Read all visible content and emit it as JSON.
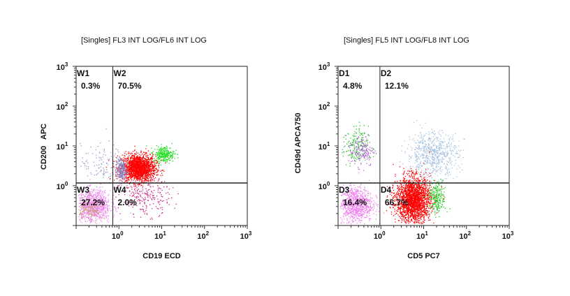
{
  "chart_data": [
    {
      "type": "scatter",
      "title": "[Singles] FL3 INT LOG/FL6 INT LOG",
      "xlabel": "CD19 ECD",
      "ylabel": "CD200   APC",
      "xscale": "log",
      "yscale": "log",
      "xlim": [
        0.1,
        1000
      ],
      "ylim": [
        0.1,
        1000
      ],
      "x_ticks": [
        {
          "base": "10",
          "exp": "0"
        },
        {
          "base": "10",
          "exp": "1"
        },
        {
          "base": "10",
          "exp": "2"
        },
        {
          "base": "10",
          "exp": "3"
        }
      ],
      "y_ticks": [
        {
          "base": "10",
          "exp": "0"
        },
        {
          "base": "10",
          "exp": "1"
        },
        {
          "base": "10",
          "exp": "2"
        },
        {
          "base": "10",
          "exp": "3"
        }
      ],
      "gate": {
        "x": 0.72,
        "y": 1.17
      },
      "quadrants": [
        {
          "name": "W1",
          "percent": "0.3%",
          "pos": "top-left"
        },
        {
          "name": "W2",
          "percent": "70.5%",
          "pos": "top-right"
        },
        {
          "name": "W3",
          "percent": "27.2%",
          "pos": "bottom-left"
        },
        {
          "name": "W4",
          "percent": "2.0%",
          "pos": "bottom-right"
        }
      ],
      "populations": [
        {
          "color": "#ff0000",
          "center": [
            2.8,
            2.8
          ],
          "count": 1800
        },
        {
          "color": "#22dd22",
          "center": [
            11,
            6.3
          ],
          "count": 260
        },
        {
          "color": "#8888c4",
          "center": [
            1.1,
            2.5
          ],
          "count": 220
        },
        {
          "color": "#9a98c8",
          "center": [
            0.4,
            3.5
          ],
          "count": 120
        },
        {
          "color": "#ee88ee",
          "center": [
            0.25,
            0.32
          ],
          "count": 900
        },
        {
          "color": "#c8a060",
          "center": [
            0.2,
            0.25
          ],
          "count": 120
        },
        {
          "color": "#cc2288",
          "center": [
            4,
            0.5
          ],
          "count": 220
        }
      ]
    },
    {
      "type": "scatter",
      "title": "[Singles] FL5 INT LOG/FL8 INT LOG",
      "xlabel": "CD5 PC7",
      "ylabel": "CD49d APCA750",
      "xscale": "log",
      "yscale": "log",
      "xlim": [
        0.1,
        1000
      ],
      "ylim": [
        0.1,
        1000
      ],
      "x_ticks": [
        {
          "base": "10",
          "exp": "0"
        },
        {
          "base": "10",
          "exp": "1"
        },
        {
          "base": "10",
          "exp": "2"
        },
        {
          "base": "10",
          "exp": "3"
        }
      ],
      "y_ticks": [
        {
          "base": "10",
          "exp": "0"
        },
        {
          "base": "10",
          "exp": "1"
        },
        {
          "base": "10",
          "exp": "2"
        },
        {
          "base": "10",
          "exp": "3"
        }
      ],
      "gate": {
        "x": 0.95,
        "y": 1.17
      },
      "quadrants": [
        {
          "name": "D1",
          "percent": "4.8%",
          "pos": "top-left"
        },
        {
          "name": "D2",
          "percent": "12.1%",
          "pos": "top-right"
        },
        {
          "name": "D3",
          "percent": "16.4%",
          "pos": "bottom-left"
        },
        {
          "name": "D4",
          "percent": "66.7%",
          "pos": "bottom-right"
        }
      ],
      "populations": [
        {
          "color": "#a8c4e0",
          "center": [
            16,
            6.3
          ],
          "count": 700
        },
        {
          "color": "#ff0000",
          "center": [
            5.6,
            0.45
          ],
          "count": 2100
        },
        {
          "color": "#22cc22",
          "center": [
            20,
            0.5
          ],
          "count": 220
        },
        {
          "color": "#22cc22",
          "center": [
            0.25,
            10
          ],
          "count": 160
        },
        {
          "color": "#aa66cc",
          "center": [
            0.35,
            8
          ],
          "count": 170
        },
        {
          "color": "#f080f0",
          "center": [
            0.25,
            0.35
          ],
          "count": 850
        }
      ]
    }
  ]
}
